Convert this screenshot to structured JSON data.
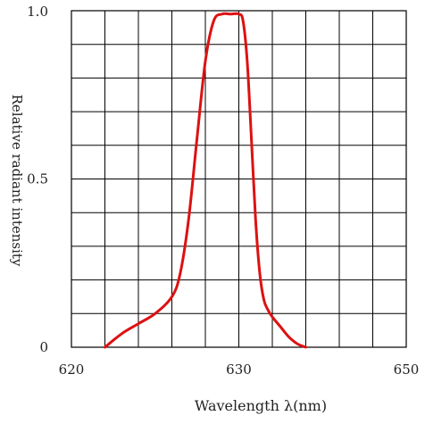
{
  "chart_data": {
    "type": "line",
    "xlabel": "Wavelength λ(nm)",
    "ylabel": "Relative radiant intensity",
    "xlim": [
      620,
      650
    ],
    "ylim": [
      0,
      1.0
    ],
    "x_ticks": [
      {
        "value": 620,
        "label": "620"
      },
      {
        "value": 630,
        "label": "630"
      },
      {
        "value": 650,
        "label": "650"
      }
    ],
    "x_tick_positions": [
      620,
      630,
      650
    ],
    "y_ticks": [
      {
        "value": 0,
        "label": "0"
      },
      {
        "value": 0.5,
        "label": "0.5"
      },
      {
        "value": 1.0,
        "label": "1.0"
      }
    ],
    "grid": true,
    "grid_columns": 10,
    "grid_rows": 10,
    "colors": {
      "line": "#dd1111",
      "grid": "#000000",
      "axis_text": "#222222"
    },
    "series": [
      {
        "x": [
          622.0,
          623.0,
          624.0,
          625.0,
          626.0,
          626.5,
          627.0,
          627.5,
          628.0,
          628.5,
          629.0,
          629.5,
          630.0,
          630.5,
          631.0,
          631.5,
          632.0,
          632.5,
          633.0,
          633.5,
          634.0,
          635.0,
          636.0,
          637.0,
          638.0
        ],
        "y": [
          0.0,
          0.04,
          0.07,
          0.1,
          0.15,
          0.22,
          0.38,
          0.62,
          0.85,
          0.97,
          0.99,
          0.99,
          0.99,
          0.97,
          0.85,
          0.62,
          0.38,
          0.22,
          0.14,
          0.11,
          0.09,
          0.06,
          0.03,
          0.01,
          0.0
        ]
      }
    ]
  }
}
